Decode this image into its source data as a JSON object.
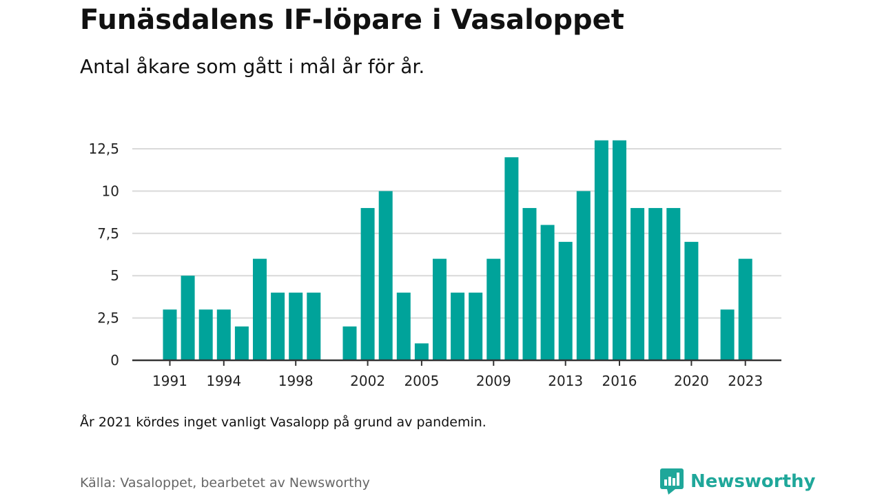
{
  "header": {
    "title": "Funäsdalens IF-löpare i Vasaloppet",
    "subtitle": "Antal åkare som gått i mål år för år."
  },
  "footer": {
    "note": "År 2021 kördes inget vanligt Vasalopp på grund av pandemin.",
    "source": "Källa: Vasaloppet, bearbetet av Newsworthy",
    "brand_name": "Newsworthy",
    "brand_icon": "newsworthy-logo-icon"
  },
  "colors": {
    "bar": "#00a39a",
    "grid": "#d9d9d9",
    "axis": "#333333",
    "brand": "#1fa79a"
  },
  "chart_data": {
    "type": "bar",
    "x": [
      1991,
      1992,
      1993,
      1994,
      1995,
      1996,
      1997,
      1998,
      1999,
      2000,
      2001,
      2002,
      2003,
      2004,
      2005,
      2006,
      2007,
      2008,
      2009,
      2010,
      2011,
      2012,
      2013,
      2014,
      2015,
      2016,
      2017,
      2018,
      2019,
      2020,
      2021,
      2022,
      2023
    ],
    "values": [
      3,
      5,
      3,
      3,
      2,
      6,
      4,
      4,
      4,
      null,
      2,
      9,
      10,
      4,
      1,
      6,
      4,
      4,
      6,
      12,
      9,
      8,
      7,
      10,
      13,
      13,
      9,
      9,
      9,
      7,
      null,
      3,
      6
    ],
    "xticks": [
      1991,
      1994,
      1998,
      2002,
      2005,
      2009,
      2013,
      2016,
      2020,
      2023
    ],
    "xtick_labels": [
      "1991",
      "1994",
      "1998",
      "2002",
      "2005",
      "2009",
      "2013",
      "2016",
      "2020",
      "2023"
    ],
    "yticks": [
      0,
      2.5,
      5,
      7.5,
      10,
      12.5
    ],
    "ytick_labels": [
      "0",
      "2,5",
      "5",
      "7,5",
      "10",
      "12,5"
    ],
    "ylim": [
      0,
      12.5
    ],
    "grid": true,
    "legend": "none"
  }
}
